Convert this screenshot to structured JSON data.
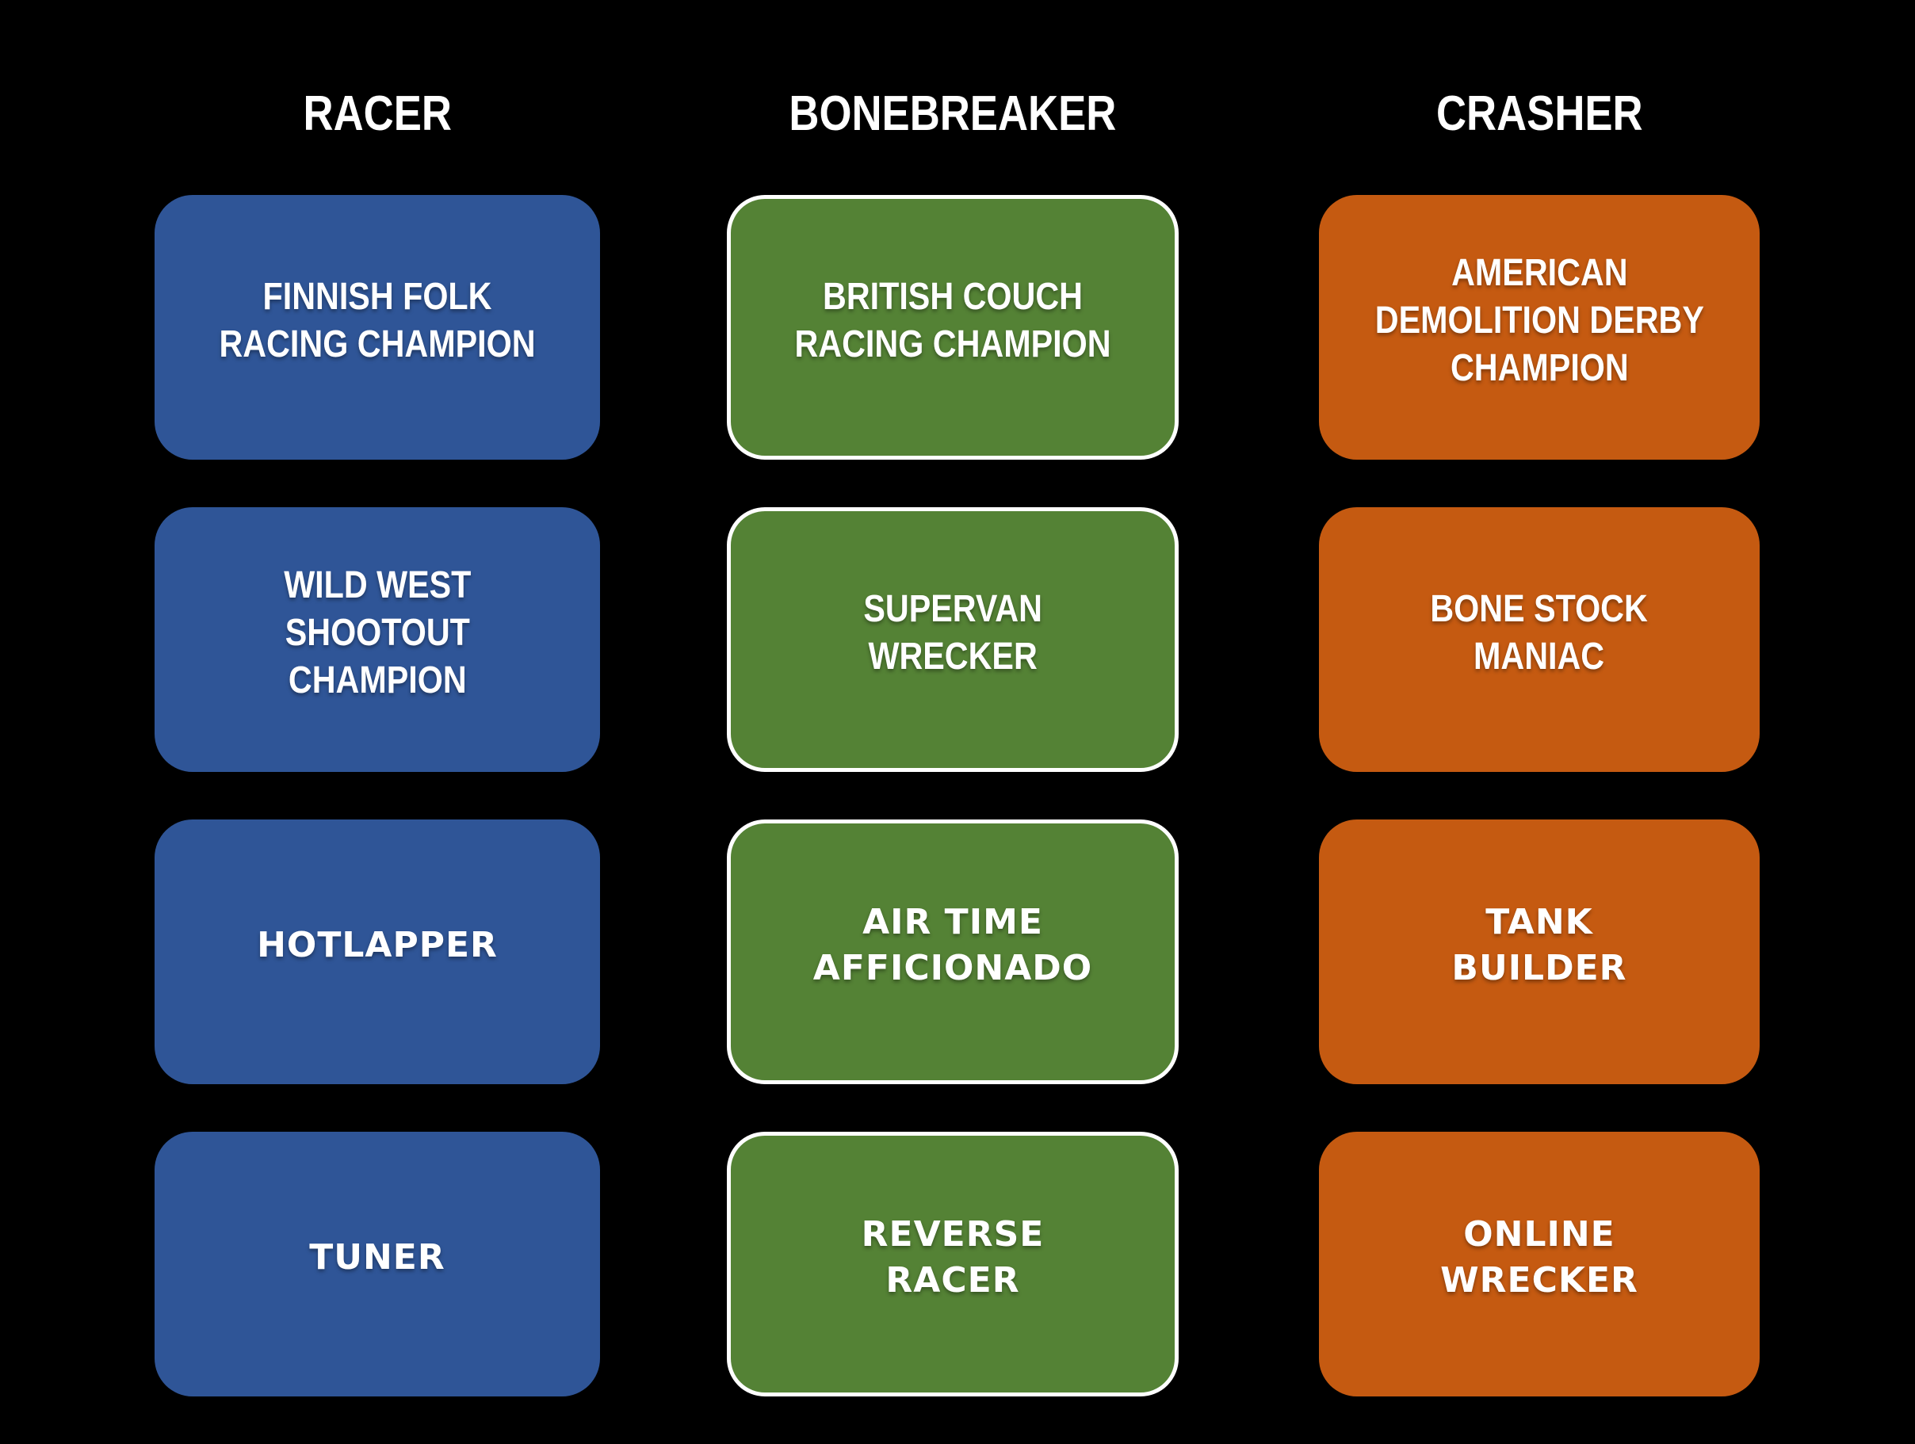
{
  "theme": {
    "background": "#000000",
    "title_text_color": "#FFFFFF",
    "card_text_color": "#FFFFFF",
    "racer_blue": "#2F5597",
    "bonebreaker_green": "#548235",
    "crasher_orange": "#C55A11",
    "green_card_border": "#FFFFFF"
  },
  "columns": [
    {
      "title": "RACER",
      "color": "#2F5597",
      "cards": [
        {
          "label": "FINNISH FOLK\nRACING CHAMPION"
        },
        {
          "label": "WILD WEST\nSHOOTOUT\nCHAMPION"
        },
        {
          "label": "HOTLAPPER"
        },
        {
          "label": "TUNER"
        }
      ]
    },
    {
      "title": "BONEBREAKER",
      "color": "#548235",
      "cards": [
        {
          "label": "BRITISH COUCH\nRACING CHAMPION"
        },
        {
          "label": "SUPERVAN\nWRECKER"
        },
        {
          "label": "AIR TIME\nAFFICIONADO"
        },
        {
          "label": "REVERSE\nRACER"
        }
      ]
    },
    {
      "title": "CRASHER",
      "color": "#C55A11",
      "cards": [
        {
          "label": "AMERICAN\nDEMOLITION DERBY\nCHAMPION"
        },
        {
          "label": "BONE STOCK\nMANIAC"
        },
        {
          "label": "TANK\nBUILDER"
        },
        {
          "label": "ONLINE\nWRECKER"
        }
      ]
    }
  ]
}
